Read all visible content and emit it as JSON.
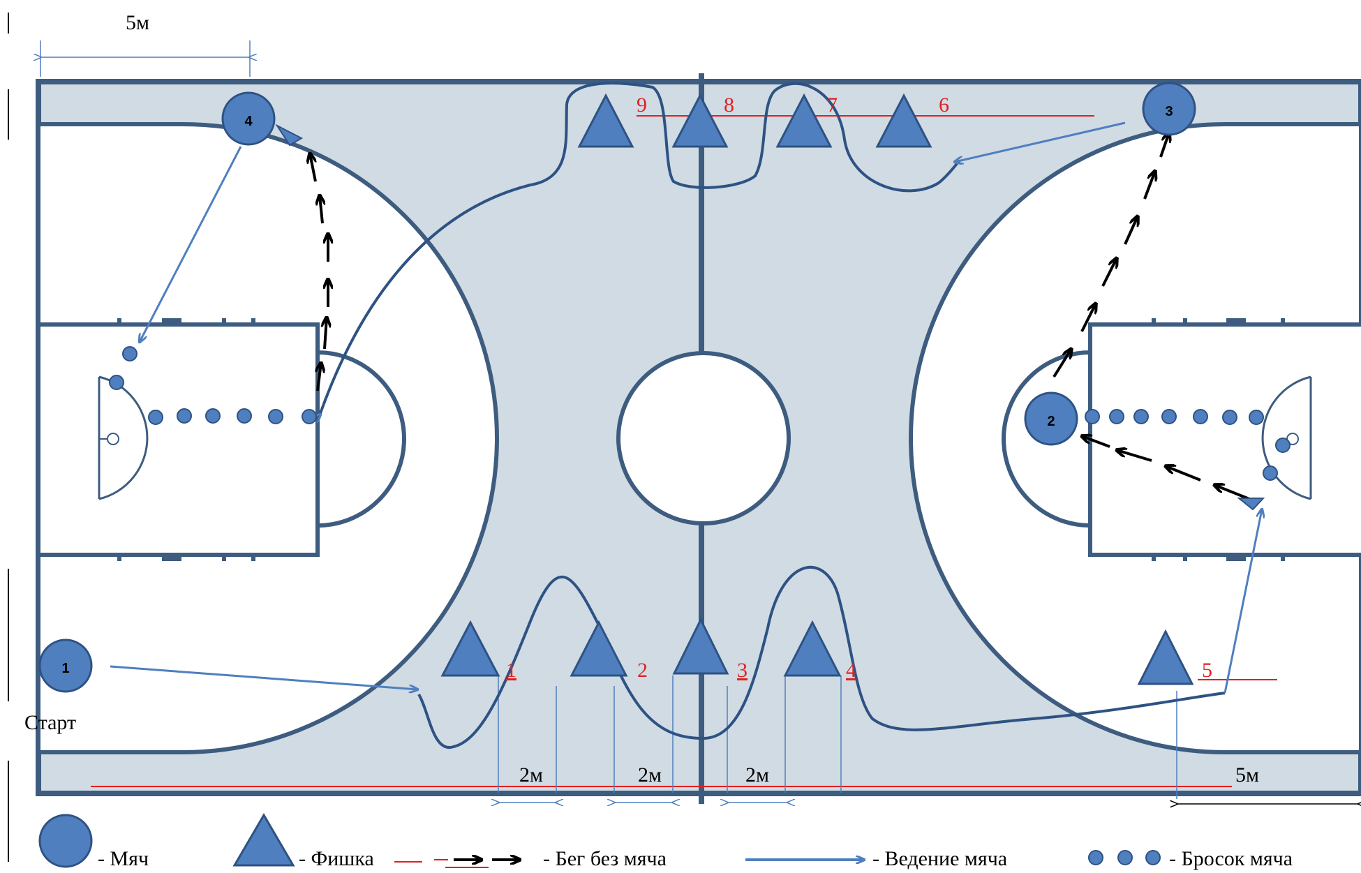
{
  "dimensions": {
    "top_left_5m": "5м",
    "bottom_right_5m": "5м",
    "gap_labels": [
      "2м",
      "2м",
      "2м"
    ]
  },
  "start_label": "Старт",
  "balls": [
    {
      "id": "1",
      "label": "1"
    },
    {
      "id": "2",
      "label": "2"
    },
    {
      "id": "3",
      "label": "3"
    },
    {
      "id": "4",
      "label": "4"
    }
  ],
  "cones_bottom": [
    {
      "num": "1"
    },
    {
      "num": "2"
    },
    {
      "num": "3"
    },
    {
      "num": "4"
    },
    {
      "num": "5"
    }
  ],
  "cones_top": [
    {
      "num": "9"
    },
    {
      "num": "8"
    },
    {
      "num": "7"
    },
    {
      "num": "6"
    }
  ],
  "legend": {
    "ball": "- Мяч",
    "cone": "- Фишка",
    "run": "- Бег без мяча",
    "dribble": "- Ведение мяча",
    "shot": "- Бросок мяча"
  },
  "colors": {
    "court_fill": "#d0dbe3",
    "court_line": "#3d5c7f",
    "blue": "#4f7fbf",
    "blue_dark": "#2e5283",
    "red": "#e02020",
    "black": "#000000"
  }
}
